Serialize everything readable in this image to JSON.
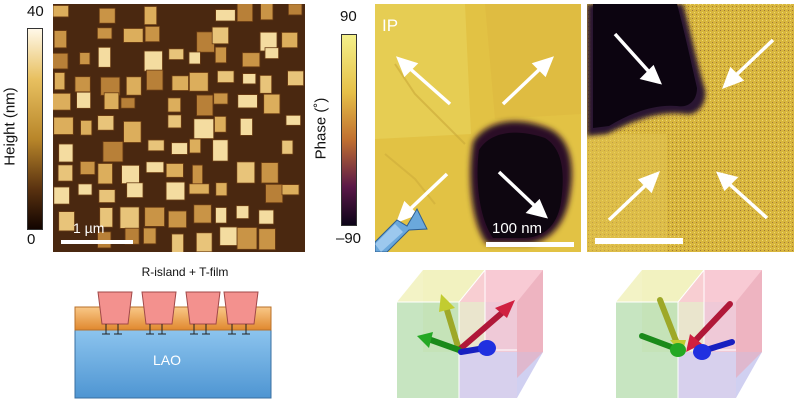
{
  "afm": {
    "colorbar_label": "Height (nm)",
    "colorbar_max": "40",
    "colorbar_min": "0",
    "scale_bar": "1 µm"
  },
  "phase": {
    "colorbar_label": "Phase (˚)",
    "colorbar_max": "90",
    "colorbar_min": "–90",
    "panel_label": "IP",
    "scale_bar": "100 nm"
  },
  "schematic": {
    "title": "R-island + T-film",
    "substrate": "LAO"
  },
  "colors": {
    "substrate": "#7fb9e6",
    "film": "#f0a050",
    "island": "#f08a8a",
    "phase_bright": "#e8d858",
    "phase_dark": "#1a0a10"
  }
}
